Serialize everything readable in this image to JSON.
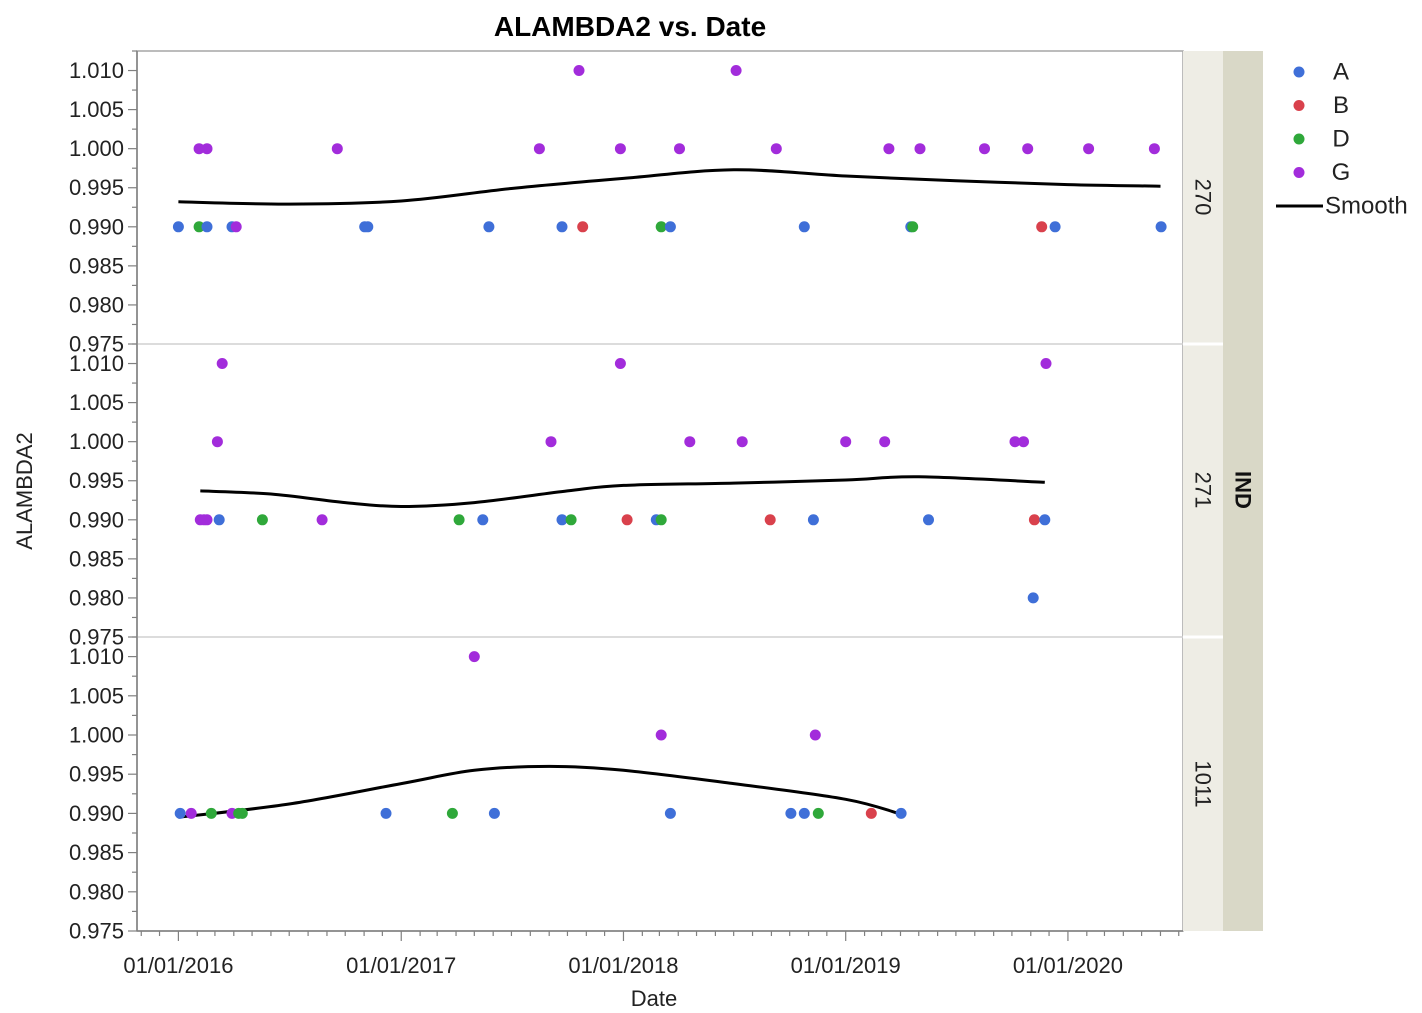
{
  "chart_data": {
    "type": "scatter",
    "title": "ALAMBDA2 vs. Date",
    "xlabel": "Date",
    "ylabel": "ALAMBDA2",
    "group_label": "IND",
    "x_ticks": [
      "01/01/2016",
      "01/01/2017",
      "01/01/2018",
      "01/01/2019",
      "01/01/2020"
    ],
    "y_ticks": [
      "1.010",
      "1.005",
      "1.000",
      "0.995",
      "0.990",
      "0.985",
      "0.980",
      "0.975"
    ],
    "xlim": [
      "2015-10-25",
      "2020-07-08"
    ],
    "ylim": [
      0.975,
      1.0125
    ],
    "grid": false,
    "legend_position": "top-right",
    "legend": [
      {
        "label": "A",
        "color": "#3f6fd8",
        "kind": "marker"
      },
      {
        "label": "B",
        "color": "#d9414c",
        "kind": "marker"
      },
      {
        "label": "D",
        "color": "#2fa83a",
        "kind": "marker"
      },
      {
        "label": "G",
        "color": "#a22cdb",
        "kind": "marker"
      },
      {
        "label": "Smooth",
        "color": "#000000",
        "kind": "line"
      }
    ],
    "panels": [
      {
        "label": "270",
        "points": [
          {
            "s": "A",
            "x": "2016-01-01",
            "y": 0.99
          },
          {
            "s": "D",
            "x": "2016-02-04",
            "y": 0.99
          },
          {
            "s": "G",
            "x": "2016-02-04",
            "y": 1.0
          },
          {
            "s": "G",
            "x": "2016-02-17",
            "y": 1.0
          },
          {
            "s": "A",
            "x": "2016-02-17",
            "y": 0.99
          },
          {
            "s": "A",
            "x": "2016-03-29",
            "y": 0.99
          },
          {
            "s": "G",
            "x": "2016-04-05",
            "y": 0.99
          },
          {
            "s": "G",
            "x": "2016-09-18",
            "y": 1.0
          },
          {
            "s": "A",
            "x": "2016-11-02",
            "y": 0.99
          },
          {
            "s": "A",
            "x": "2016-11-07",
            "y": 0.99
          },
          {
            "s": "A",
            "x": "2017-05-25",
            "y": 0.99
          },
          {
            "s": "G",
            "x": "2017-08-16",
            "y": 1.0
          },
          {
            "s": "A",
            "x": "2017-09-22",
            "y": 0.99
          },
          {
            "s": "G",
            "x": "2017-10-20",
            "y": 1.01
          },
          {
            "s": "B",
            "x": "2017-10-26",
            "y": 0.99
          },
          {
            "s": "G",
            "x": "2017-12-27",
            "y": 1.0
          },
          {
            "s": "D",
            "x": "2018-03-04",
            "y": 0.99
          },
          {
            "s": "A",
            "x": "2018-03-19",
            "y": 0.99
          },
          {
            "s": "G",
            "x": "2018-04-03",
            "y": 1.0
          },
          {
            "s": "G",
            "x": "2018-07-05",
            "y": 1.01
          },
          {
            "s": "G",
            "x": "2018-09-09",
            "y": 1.0
          },
          {
            "s": "A",
            "x": "2018-10-25",
            "y": 0.99
          },
          {
            "s": "G",
            "x": "2019-03-13",
            "y": 1.0
          },
          {
            "s": "A",
            "x": "2019-04-18",
            "y": 0.99
          },
          {
            "s": "D",
            "x": "2019-04-21",
            "y": 0.99
          },
          {
            "s": "G",
            "x": "2019-05-03",
            "y": 1.0
          },
          {
            "s": "G",
            "x": "2019-08-17",
            "y": 1.0
          },
          {
            "s": "G",
            "x": "2019-10-27",
            "y": 1.0
          },
          {
            "s": "B",
            "x": "2019-11-19",
            "y": 0.99
          },
          {
            "s": "A",
            "x": "2019-12-11",
            "y": 0.99
          },
          {
            "s": "G",
            "x": "2020-02-04",
            "y": 1.0
          },
          {
            "s": "G",
            "x": "2020-05-22",
            "y": 1.0
          },
          {
            "s": "A",
            "x": "2020-06-02",
            "y": 0.99
          }
        ],
        "smooth": [
          {
            "x": "2016-01-01",
            "y": 0.9932
          },
          {
            "x": "2016-07-01",
            "y": 0.9929
          },
          {
            "x": "2017-01-01",
            "y": 0.9933
          },
          {
            "x": "2017-07-01",
            "y": 0.9949
          },
          {
            "x": "2018-01-01",
            "y": 0.9962
          },
          {
            "x": "2018-07-01",
            "y": 0.9973
          },
          {
            "x": "2019-01-01",
            "y": 0.9965
          },
          {
            "x": "2019-07-01",
            "y": 0.9959
          },
          {
            "x": "2020-01-01",
            "y": 0.9954
          },
          {
            "x": "2020-06-01",
            "y": 0.9952
          }
        ]
      },
      {
        "label": "271",
        "points": [
          {
            "s": "G",
            "x": "2016-02-06",
            "y": 0.99
          },
          {
            "s": "G",
            "x": "2016-02-12",
            "y": 0.99
          },
          {
            "s": "G",
            "x": "2016-02-17",
            "y": 0.99
          },
          {
            "s": "G",
            "x": "2016-03-05",
            "y": 1.0
          },
          {
            "s": "A",
            "x": "2016-03-08",
            "y": 0.99
          },
          {
            "s": "G",
            "x": "2016-03-13",
            "y": 1.01
          },
          {
            "s": "D",
            "x": "2016-05-18",
            "y": 0.99
          },
          {
            "s": "G",
            "x": "2016-08-24",
            "y": 0.99
          },
          {
            "s": "D",
            "x": "2017-04-06",
            "y": 0.99
          },
          {
            "s": "A",
            "x": "2017-05-15",
            "y": 0.99
          },
          {
            "s": "G",
            "x": "2017-09-04",
            "y": 1.0
          },
          {
            "s": "A",
            "x": "2017-09-22",
            "y": 0.99
          },
          {
            "s": "D",
            "x": "2017-10-07",
            "y": 0.99
          },
          {
            "s": "G",
            "x": "2017-12-27",
            "y": 1.01
          },
          {
            "s": "B",
            "x": "2018-01-07",
            "y": 0.99
          },
          {
            "s": "A",
            "x": "2018-02-24",
            "y": 0.99
          },
          {
            "s": "D",
            "x": "2018-03-04",
            "y": 0.99
          },
          {
            "s": "G",
            "x": "2018-04-20",
            "y": 1.0
          },
          {
            "s": "G",
            "x": "2018-07-15",
            "y": 1.0
          },
          {
            "s": "B",
            "x": "2018-08-30",
            "y": 0.99
          },
          {
            "s": "A",
            "x": "2018-11-09",
            "y": 0.99
          },
          {
            "s": "G",
            "x": "2019-01-01",
            "y": 1.0
          },
          {
            "s": "G",
            "x": "2019-03-06",
            "y": 1.0
          },
          {
            "s": "A",
            "x": "2019-05-17",
            "y": 0.99
          },
          {
            "s": "G",
            "x": "2019-10-06",
            "y": 1.0
          },
          {
            "s": "G",
            "x": "2019-10-20",
            "y": 1.0
          },
          {
            "s": "A",
            "x": "2019-11-05",
            "y": 0.98
          },
          {
            "s": "B",
            "x": "2019-11-07",
            "y": 0.99
          },
          {
            "s": "A",
            "x": "2019-11-24",
            "y": 0.99
          },
          {
            "s": "G",
            "x": "2019-11-26",
            "y": 1.01
          }
        ],
        "smooth": [
          {
            "x": "2016-02-06",
            "y": 0.9937
          },
          {
            "x": "2016-06-01",
            "y": 0.9933
          },
          {
            "x": "2016-10-01",
            "y": 0.9922
          },
          {
            "x": "2017-01-01",
            "y": 0.9917
          },
          {
            "x": "2017-05-01",
            "y": 0.9922
          },
          {
            "x": "2017-10-01",
            "y": 0.9937
          },
          {
            "x": "2018-01-01",
            "y": 0.9944
          },
          {
            "x": "2018-07-01",
            "y": 0.9947
          },
          {
            "x": "2019-01-01",
            "y": 0.9951
          },
          {
            "x": "2019-05-01",
            "y": 0.9955
          },
          {
            "x": "2019-11-24",
            "y": 0.9948
          }
        ]
      },
      {
        "label": "1011",
        "points": [
          {
            "s": "A",
            "x": "2016-01-04",
            "y": 0.99
          },
          {
            "s": "G",
            "x": "2016-01-22",
            "y": 0.99
          },
          {
            "s": "D",
            "x": "2016-02-24",
            "y": 0.99
          },
          {
            "s": "G",
            "x": "2016-03-29",
            "y": 0.99
          },
          {
            "s": "D",
            "x": "2016-04-09",
            "y": 0.99
          },
          {
            "s": "D",
            "x": "2016-04-15",
            "y": 0.99
          },
          {
            "s": "A",
            "x": "2016-12-07",
            "y": 0.99
          },
          {
            "s": "D",
            "x": "2017-03-26",
            "y": 0.99
          },
          {
            "s": "G",
            "x": "2017-05-01",
            "y": 1.01
          },
          {
            "s": "A",
            "x": "2017-06-03",
            "y": 0.99
          },
          {
            "s": "G",
            "x": "2018-03-04",
            "y": 1.0
          },
          {
            "s": "A",
            "x": "2018-03-19",
            "y": 0.99
          },
          {
            "s": "A",
            "x": "2018-10-03",
            "y": 0.99
          },
          {
            "s": "A",
            "x": "2018-10-25",
            "y": 0.99
          },
          {
            "s": "G",
            "x": "2018-11-12",
            "y": 1.0
          },
          {
            "s": "D",
            "x": "2018-11-17",
            "y": 0.99
          },
          {
            "s": "B",
            "x": "2019-02-12",
            "y": 0.99
          },
          {
            "s": "A",
            "x": "2019-04-02",
            "y": 0.99
          }
        ],
        "smooth": [
          {
            "x": "2016-01-01",
            "y": 0.9895
          },
          {
            "x": "2016-07-01",
            "y": 0.9912
          },
          {
            "x": "2017-01-01",
            "y": 0.9938
          },
          {
            "x": "2017-05-01",
            "y": 0.9955
          },
          {
            "x": "2017-09-01",
            "y": 0.996
          },
          {
            "x": "2018-01-01",
            "y": 0.9955
          },
          {
            "x": "2018-07-01",
            "y": 0.9938
          },
          {
            "x": "2019-01-01",
            "y": 0.9918
          },
          {
            "x": "2019-04-02",
            "y": 0.9899
          }
        ]
      }
    ]
  }
}
